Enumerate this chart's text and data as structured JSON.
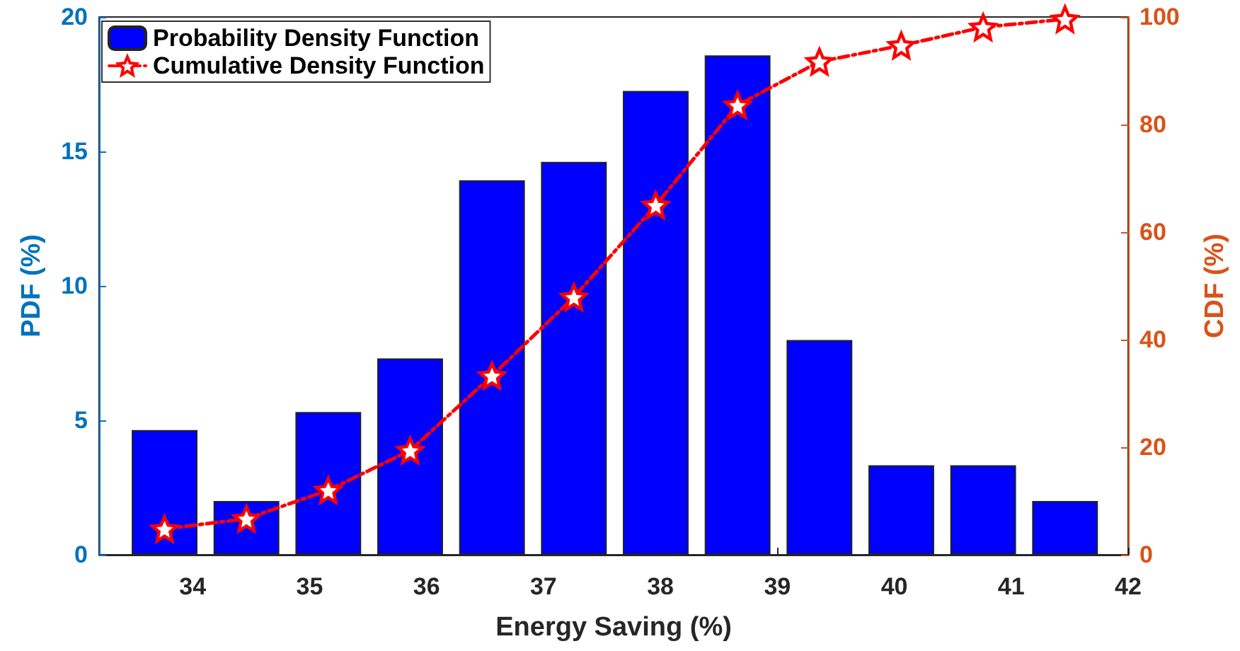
{
  "chart_data": {
    "type": "bar",
    "xlabel": "Energy Saving (%)",
    "ylabel": "PDF (%)",
    "y2label": "CDF (%)",
    "x": [
      33.76,
      34.46,
      35.16,
      35.86,
      36.56,
      37.26,
      37.96,
      38.66,
      39.36,
      40.06,
      40.76,
      41.46
    ],
    "series": [
      {
        "name": "Probability Density Function",
        "color": "#0000ff",
        "values": [
          4.64,
          2.0,
          5.31,
          7.3,
          13.93,
          14.61,
          17.25,
          18.57,
          7.99,
          3.33,
          3.33,
          2.0
        ]
      },
      {
        "name": "Cumulative Density Function",
        "type": "line",
        "axis": "y2",
        "color": "#ff0000",
        "marker": "star",
        "line_style": "dashed",
        "values": [
          4.8,
          6.7,
          12.0,
          19.4,
          33.3,
          47.9,
          65.0,
          83.6,
          91.7,
          94.7,
          98.1,
          99.6
        ]
      }
    ],
    "xlim": [
      33.2,
      42
    ],
    "xticks": [
      34,
      35,
      36,
      37,
      38,
      39,
      40,
      41,
      42
    ],
    "ylim": [
      0,
      20
    ],
    "yticks": [
      0,
      5,
      10,
      15,
      20
    ],
    "y2lim": [
      0,
      100
    ],
    "y2ticks": [
      0,
      20,
      40,
      60,
      80,
      100
    ],
    "grid": false,
    "legend": "top left"
  }
}
